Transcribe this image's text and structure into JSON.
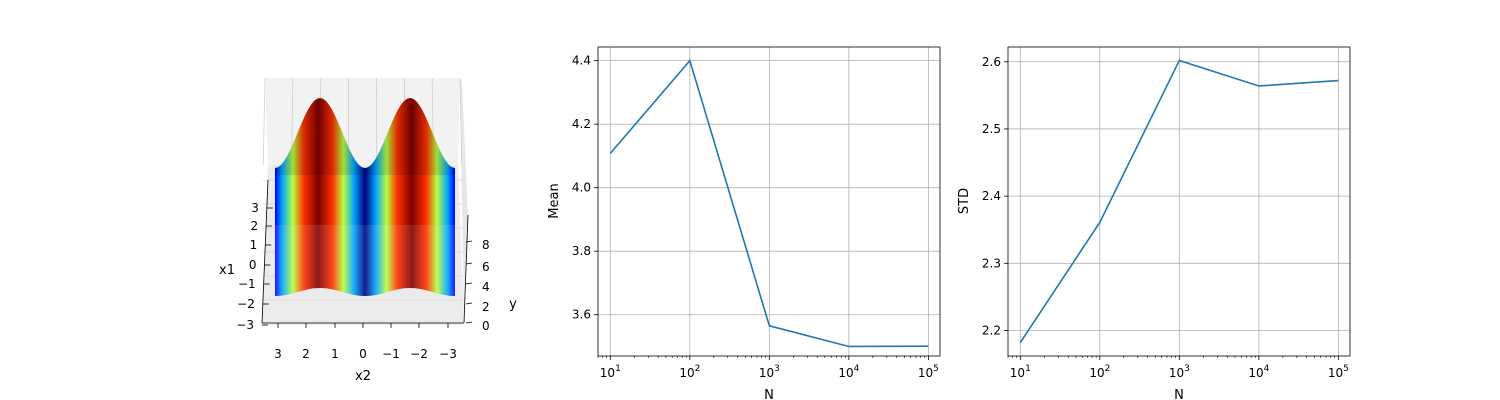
{
  "chart_data": [
    {
      "type": "surface3d",
      "title": "",
      "xlabel": "x2",
      "ylabel": "y",
      "zlabel": "x1",
      "x_ticks": [
        "3",
        "2",
        "1",
        "0",
        "−1",
        "−2",
        "−3"
      ],
      "y_ticks": [
        "0",
        "2",
        "4",
        "6",
        "8"
      ],
      "z_ticks": [
        "−3",
        "−2",
        "−1",
        "0",
        "1",
        "2",
        "3"
      ],
      "colormap": [
        "#00007f",
        "#0000ff",
        "#00a4ff",
        "#3fffb7",
        "#b7ff3f",
        "#ffb900",
        "#ff3000",
        "#7f0000"
      ],
      "grid": true
    },
    {
      "type": "line",
      "title": "",
      "xlabel": "N",
      "ylabel": "Mean",
      "xscale": "log",
      "x": [
        10,
        100,
        1000,
        10000,
        100000
      ],
      "series": [
        {
          "values": [
            4.108,
            4.4,
            3.565,
            3.5,
            3.501
          ],
          "color": "#1f77b4"
        }
      ],
      "xlim": [
        7,
        140000
      ],
      "ylim": [
        3.47,
        4.443
      ],
      "x_ticks": [
        {
          "base": "10",
          "exp": "1"
        },
        {
          "base": "10",
          "exp": "2"
        },
        {
          "base": "10",
          "exp": "3"
        },
        {
          "base": "10",
          "exp": "4"
        },
        {
          "base": "10",
          "exp": "5"
        }
      ],
      "y_ticks": [
        "3.6",
        "3.8",
        "4.0",
        "4.2",
        "4.4"
      ],
      "grid": true
    },
    {
      "type": "line",
      "title": "",
      "xlabel": "N",
      "ylabel": "STD",
      "xscale": "log",
      "x": [
        10,
        100,
        1000,
        10000,
        100000
      ],
      "series": [
        {
          "values": [
            2.182,
            2.361,
            2.602,
            2.564,
            2.572
          ],
          "color": "#1f77b4"
        }
      ],
      "xlim": [
        7,
        140000
      ],
      "ylim": [
        2.162,
        2.622
      ],
      "x_ticks": [
        {
          "base": "10",
          "exp": "1"
        },
        {
          "base": "10",
          "exp": "2"
        },
        {
          "base": "10",
          "exp": "3"
        },
        {
          "base": "10",
          "exp": "4"
        },
        {
          "base": "10",
          "exp": "5"
        }
      ],
      "y_ticks": [
        "2.2",
        "2.3",
        "2.4",
        "2.5",
        "2.6"
      ],
      "grid": true
    }
  ]
}
